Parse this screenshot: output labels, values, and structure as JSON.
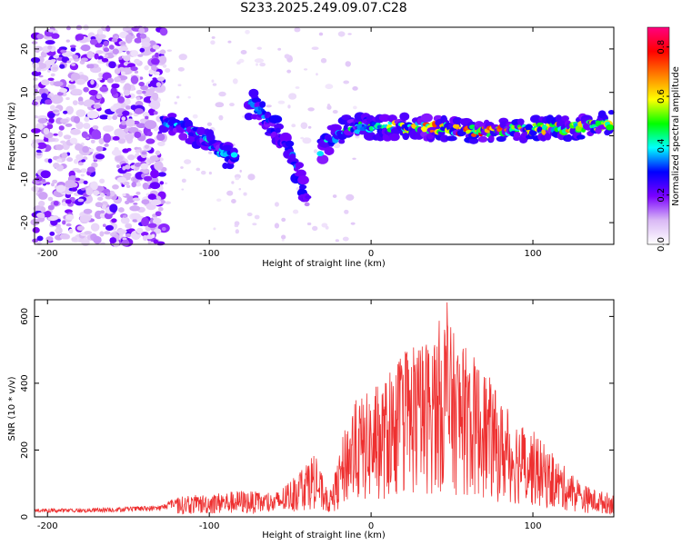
{
  "title": "S233.2025.249.09.07.C28",
  "chart_data": [
    {
      "type": "heatmap",
      "xlabel": "Height of straight line (km)",
      "ylabel": "Frequency (Hz)",
      "xlim": [
        -208,
        150
      ],
      "ylim": [
        -25,
        25
      ],
      "xticks": [
        -200,
        -100,
        0,
        100
      ],
      "yticks": [
        20,
        10,
        0,
        -10,
        -20
      ],
      "colorbar": {
        "label": "Normalized spectral amplitude",
        "range": [
          0.0,
          0.88
        ],
        "ticks": [
          "0.0",
          "0.2",
          "0.4",
          "0.6",
          "0.8"
        ],
        "colors": [
          "#ffffff",
          "#d9b8f5",
          "#7a00ff",
          "#0000ff",
          "#00ffff",
          "#00ff00",
          "#ffff00",
          "#ff8000",
          "#ff0000",
          "#ff0080"
        ]
      },
      "ridge": [
        {
          "x": -128,
          "y": 4,
          "amp": 0.3
        },
        {
          "x": -110,
          "y": 1,
          "amp": 0.35
        },
        {
          "x": -95,
          "y": -3,
          "amp": 0.35
        },
        {
          "x": -85,
          "y": -6,
          "amp": 0.35
        },
        {
          "x": -75,
          "y": 8,
          "amp": 0.3
        },
        {
          "x": -60,
          "y": 2,
          "amp": 0.3
        },
        {
          "x": -50,
          "y": -4,
          "amp": 0.3
        },
        {
          "x": -45,
          "y": -8,
          "amp": 0.3
        },
        {
          "x": -40,
          "y": -15,
          "amp": 0.2
        },
        {
          "x": -30,
          "y": -2,
          "amp": 0.35
        },
        {
          "x": -15,
          "y": 2,
          "amp": 0.4
        },
        {
          "x": 0,
          "y": 2,
          "amp": 0.45
        },
        {
          "x": 30,
          "y": 2,
          "amp": 0.6
        },
        {
          "x": 50,
          "y": 1.5,
          "amp": 0.65
        },
        {
          "x": 75,
          "y": 1,
          "amp": 0.7
        },
        {
          "x": 100,
          "y": 1.5,
          "amp": 0.6
        },
        {
          "x": 130,
          "y": 2,
          "amp": 0.55
        },
        {
          "x": 148,
          "y": 3,
          "amp": 0.6
        }
      ]
    },
    {
      "type": "line",
      "xlabel": "Height of straight line (km)",
      "ylabel": "SNR (10 * v/v)",
      "xlim": [
        -208,
        150
      ],
      "ylim": [
        0,
        650
      ],
      "xticks": [
        -200,
        -100,
        0,
        100
      ],
      "yticks": [
        0,
        200,
        400,
        600
      ],
      "series": [
        {
          "name": "SNR",
          "color": "#ee3030",
          "envelope": {
            "x": [
              -208,
              -180,
              -150,
              -130,
              -120,
              -100,
              -80,
              -60,
              -50,
              -45,
              -40,
              -35,
              -30,
              -25,
              -20,
              -15,
              -10,
              0,
              10,
              20,
              30,
              40,
              45,
              50,
              60,
              70,
              80,
              90,
              100,
              110,
              120,
              130,
              140,
              150
            ],
            "y": [
              25,
              25,
              30,
              35,
              60,
              70,
              80,
              70,
              110,
              140,
              170,
              200,
              120,
              80,
              180,
              300,
              350,
              380,
              420,
              500,
              520,
              560,
              640,
              560,
              500,
              450,
              350,
              300,
              260,
              200,
              150,
              100,
              80,
              70
            ]
          },
          "peak": {
            "x": 47,
            "y": 642
          }
        }
      ]
    }
  ]
}
